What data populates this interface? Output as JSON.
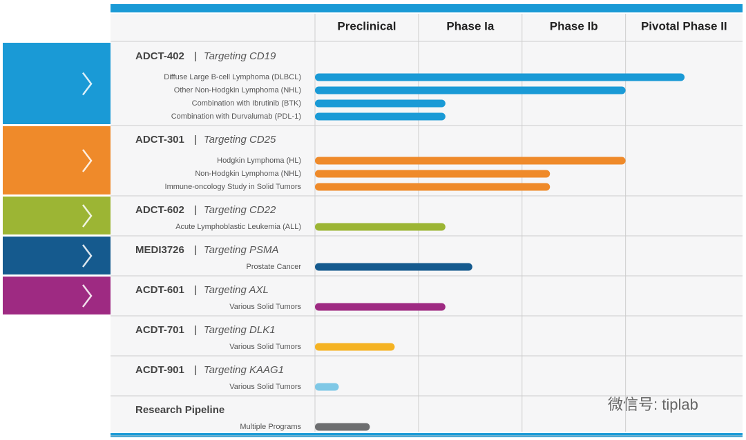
{
  "chart_data": {
    "type": "pipeline",
    "phases": [
      "Preclinical",
      "Phase Ia",
      "Phase Ib",
      "Pivotal Phase II"
    ],
    "xlim": [
      0,
      4.13
    ],
    "xticks": [
      0,
      1,
      2,
      3
    ],
    "grid": true,
    "groups": [
      {
        "name": "ADCT-402",
        "target": "Targeting CD19",
        "color": "#1a9ad6",
        "tab_color": "#1a9ad6",
        "programs": [
          {
            "label": "Diffuse Large B-cell Lymphoma (DLBCL)",
            "value": 3.57
          },
          {
            "label": "Other Non-Hodgkin Lymphoma (NHL)",
            "value": 3.0
          },
          {
            "label": "Combination with Ibrutinib (BTK)",
            "value": 1.26
          },
          {
            "label": "Combination with Durvalumab (PDL-1)",
            "value": 1.26
          }
        ]
      },
      {
        "name": "ADCT-301",
        "target": "Targeting CD25",
        "color": "#ef8a2a",
        "tab_color": "#ef8a2a",
        "programs": [
          {
            "label": "Hodgkin Lymphoma (HL)",
            "value": 3.0
          },
          {
            "label": "Non-Hodgkin Lymphoma (NHL)",
            "value": 2.27
          },
          {
            "label": "Immune-oncology Study in Solid Tumors",
            "value": 2.27
          }
        ]
      },
      {
        "name": "ADCT-602",
        "target": "Targeting CD22",
        "color": "#9cb534",
        "tab_color": "#9cb534",
        "programs": [
          {
            "label": "Acute Lymphoblastic Leukemia (ALL)",
            "value": 1.26
          }
        ]
      },
      {
        "name": "MEDI3726",
        "target": "Targeting PSMA",
        "color": "#155a8e",
        "tab_color": "#155a8e",
        "programs": [
          {
            "label": "Prostate Cancer",
            "value": 1.52
          }
        ]
      },
      {
        "name": "ACDT-601",
        "target": "Targeting AXL",
        "color": "#9e2a82",
        "tab_color": "#9e2a82",
        "programs": [
          {
            "label": "Various Solid Tumors",
            "value": 1.26
          }
        ]
      },
      {
        "name": "ACDT-701",
        "target": "Targeting DLK1",
        "color": "#f5b323",
        "programs": [
          {
            "label": "Various Solid Tumors",
            "value": 0.77
          }
        ]
      },
      {
        "name": "ACDT-901",
        "target": "Targeting KAAG1",
        "color": "#7fc8e6",
        "programs": [
          {
            "label": "Various Solid Tumors",
            "value": 0.23
          }
        ]
      },
      {
        "name": "Research Pipeline",
        "color": "#6d6e70",
        "programs": [
          {
            "label": "Multiple Programs",
            "value": 0.53
          }
        ]
      }
    ]
  },
  "watermark": "微信号: tiplab"
}
